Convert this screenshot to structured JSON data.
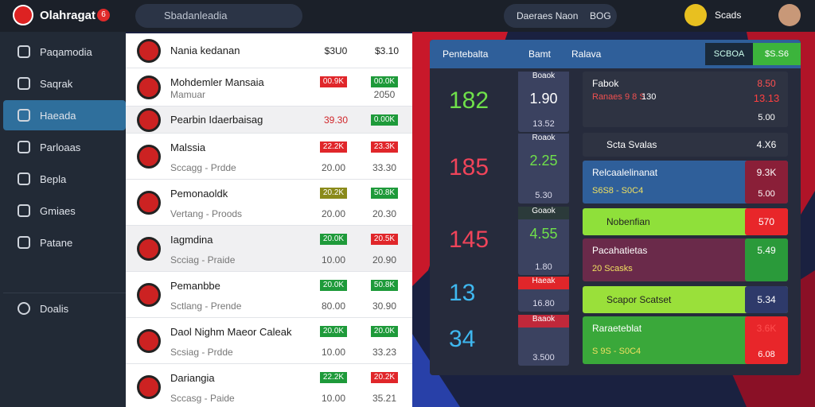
{
  "header": {
    "logo": "Olahragat",
    "badge": "6",
    "search": "Sbadanleadia",
    "status": "Daeraes Naon",
    "status_code": "BOG",
    "user": "Scads"
  },
  "sidebar": {
    "items": [
      "Paqamodia",
      "Saqrak",
      "Haeada",
      "Parloaas",
      "Bepla",
      "Gmiaes",
      "Patane"
    ],
    "active": 2,
    "footer": "Doalis"
  },
  "list": {
    "rows": [
      {
        "title": "Nania kedanan",
        "sub": "",
        "odds": [
          "$3U0",
          "$3.10"
        ],
        "odds_colors": [
          "none",
          "none"
        ],
        "subs": [
          "",
          ""
        ]
      },
      {
        "title": "Mohdemler Mansaia",
        "sub": "Mamuar",
        "odds": [
          "00.9K",
          "00.0K"
        ],
        "odds_colors": [
          "red",
          "green"
        ],
        "subs": [
          "",
          "2050"
        ]
      },
      {
        "title": "Pearbin Idaerbaisag",
        "sub": "",
        "odds": [
          "39.30",
          "0.00K"
        ],
        "odds_colors": [
          "redtext",
          "green"
        ],
        "subs": [
          "",
          ""
        ]
      },
      {
        "title": "Malssia",
        "sub": "Sccagg - Prdde",
        "odds": [
          "22.2K",
          "23.3K"
        ],
        "odds_colors": [
          "red",
          "red"
        ],
        "subs": [
          "20.00",
          "33.30"
        ]
      },
      {
        "title": "Pemonaoldk",
        "sub": "Vertang - Proods",
        "odds": [
          "20.2K",
          "50.8K"
        ],
        "odds_colors": [
          "olive",
          "green"
        ],
        "subs": [
          "20.00",
          "20.30"
        ]
      },
      {
        "title": "Iagmdina",
        "sub": "Scciag - Praide",
        "odds": [
          "20.0K",
          "20.5K"
        ],
        "odds_colors": [
          "green",
          "red"
        ],
        "subs": [
          "10.00",
          "20.90"
        ]
      },
      {
        "title": "Pemanbbe",
        "sub": "Sctlang - Prende",
        "odds": [
          "20.0K",
          "50.8K"
        ],
        "odds_colors": [
          "green",
          "green"
        ],
        "subs": [
          "80.00",
          "30.90"
        ]
      },
      {
        "title": "Daol Nighm Maeor Caleak",
        "sub": "Scsiag - Prdde",
        "odds": [
          "20.0K",
          "20.0K"
        ],
        "odds_colors": [
          "green",
          "green"
        ],
        "subs": [
          "10.00",
          "33.23"
        ]
      },
      {
        "title": "Dariangia",
        "sub": "Sccasg - Paide",
        "odds": [
          "22.2K",
          "20.2K"
        ],
        "odds_colors": [
          "green",
          "red"
        ],
        "subs": [
          "10.00",
          "35.21"
        ]
      }
    ]
  },
  "panel": {
    "tabs": [
      "Pentebalta",
      "Bamt",
      "Ralava"
    ],
    "buttons": [
      "SCBOA",
      "$S.S6"
    ],
    "stats": [
      {
        "big": "182",
        "big_color": "#6fe04a",
        "label": "Boaok",
        "value": "1.90",
        "sub": "13.52",
        "label_bg": "#3b4260"
      },
      {
        "big": "185",
        "big_color": "#f0445a",
        "label": "Roaok",
        "value": "2.25",
        "sub": "5.30",
        "label_bg": "#3b4260"
      },
      {
        "big": "145",
        "big_color": "#f0445a",
        "label": "Goaok",
        "value": "4.55",
        "sub": "1.80",
        "label_bg": "#2b3a3a"
      },
      {
        "big": "13",
        "big_color": "#3fb8f0",
        "label": "Haeak",
        "value": "",
        "sub": "16.80",
        "label_bg": "#e0262a"
      },
      {
        "big": "34",
        "big_color": "#3fb8f0",
        "label": "Baaok",
        "value": "",
        "sub": "3.500",
        "label_bg": "#c0283a"
      }
    ],
    "cards": [
      {
        "title": "Fabok",
        "sub": "Ranaes 9 8 S",
        "mid": "130",
        "right": "8.50",
        "right2": "13.13",
        "foot": "5.00",
        "bg": "#2e3342",
        "side": "#2e3342"
      },
      {
        "title": "Scta Svalas",
        "sub": "",
        "mid": "",
        "right": "4.X6",
        "right2": "",
        "foot": "",
        "bg": "#2e3342",
        "side": "#2e3342"
      },
      {
        "title": "Relcaalelinanat",
        "sub": "S6S8 - S0C4",
        "mid": "",
        "right": "9.3K",
        "right2": "",
        "foot": "5.00",
        "bg": "#2f5f9a",
        "side": "#8a1f38"
      },
      {
        "title": "Nobenfian",
        "sub": "",
        "mid": "",
        "right": "570",
        "right2": "",
        "foot": "",
        "bg": "#8fe03a",
        "side": "#e8262a"
      },
      {
        "title": "Pacahatietas",
        "sub": "20 Scasks",
        "mid": "",
        "right": "5.49",
        "right2": "",
        "foot": "",
        "bg": "#6a2a4a",
        "side": "#2a9a3a"
      },
      {
        "title": "Scapor Scatset",
        "sub": "",
        "mid": "",
        "right": "5.34",
        "right2": "",
        "foot": "",
        "bg": "#9ae03a",
        "side": "#2e3a6a"
      },
      {
        "title": "Raraeteblat",
        "sub": "S 9S - S0C4",
        "mid": "",
        "right": "3.6K",
        "right2": "",
        "foot": "6.08",
        "bg": "#3aa83a",
        "side": "#e8262a"
      }
    ]
  }
}
